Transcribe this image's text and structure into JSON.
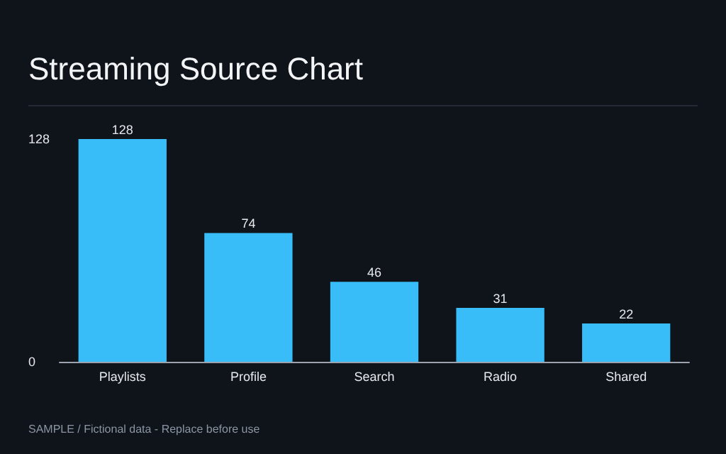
{
  "chart_data": {
    "type": "bar",
    "title": "Streaming Source Chart",
    "categories": [
      "Playlists",
      "Profile",
      "Search",
      "Radio",
      "Shared"
    ],
    "values": [
      128,
      74,
      46,
      31,
      22
    ],
    "color": "#38bdf8",
    "ylim": [
      0,
      128
    ],
    "yticks": [
      0,
      128
    ],
    "grid": false,
    "data_labels": true,
    "annotations": [
      "SAMPLE / Fictional data - Replace before use"
    ]
  }
}
